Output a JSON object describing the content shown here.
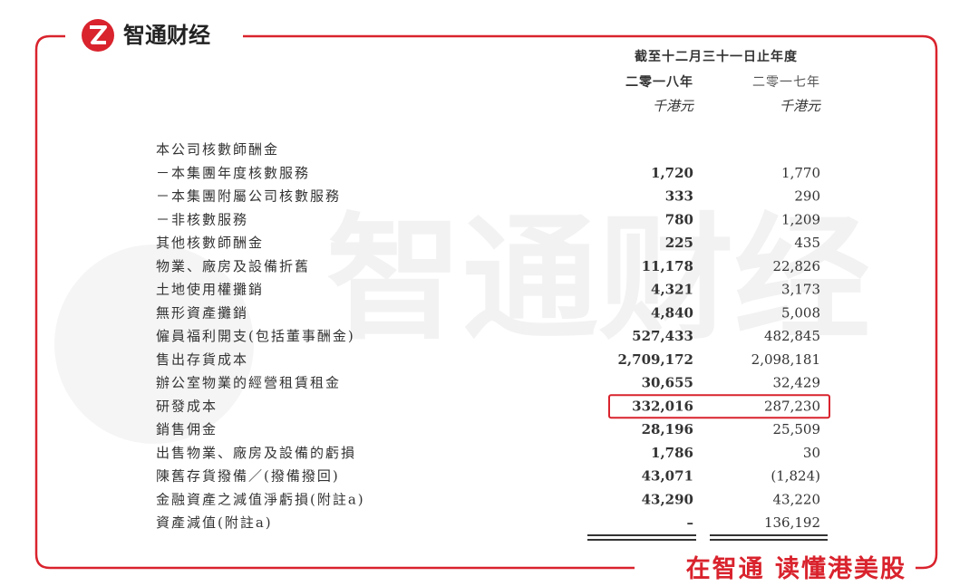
{
  "brand": {
    "name": "智通财经",
    "slogan": "在智通 读懂港美股"
  },
  "table": {
    "period": "截至十二月三十一日止年度",
    "columns": [
      {
        "year": "二零一八年",
        "unit": "千港元"
      },
      {
        "year": "二零一七年",
        "unit": "千港元"
      }
    ],
    "rows": [
      {
        "label": "本公司核數師酬金"
      },
      {
        "label": "－本集團年度核數服務",
        "values": [
          "1,720",
          "1,770"
        ]
      },
      {
        "label": "－本集團附屬公司核數服務",
        "values": [
          "333",
          "290"
        ]
      },
      {
        "label": "－非核數服務",
        "values": [
          "780",
          "1,209"
        ]
      },
      {
        "label": "其他核數師酬金",
        "values": [
          "225",
          "435"
        ]
      },
      {
        "label": "物業、廠房及設備折舊",
        "values": [
          "11,178",
          "22,826"
        ]
      },
      {
        "label": "土地使用權攤銷",
        "values": [
          "4,321",
          "3,173"
        ]
      },
      {
        "label": "無形資產攤銷",
        "values": [
          "4,840",
          "5,008"
        ]
      },
      {
        "label": "僱員福利開支(包括董事酬金)",
        "values": [
          "527,433",
          "482,845"
        ]
      },
      {
        "label": "售出存貨成本",
        "values": [
          "2,709,172",
          "2,098,181"
        ]
      },
      {
        "label": "辦公室物業的經營租賃租金",
        "values": [
          "30,655",
          "32,429"
        ]
      },
      {
        "label": "研發成本",
        "values": [
          "332,016",
          "287,230"
        ],
        "highlighted": true
      },
      {
        "label": "銷售佣金",
        "values": [
          "28,196",
          "25,509"
        ]
      },
      {
        "label": "出售物業、廠房及設備的虧損",
        "values": [
          "1,786",
          "30"
        ]
      },
      {
        "label": "陳舊存貨撥備／(撥備撥回)",
        "values": [
          "43,071",
          "(1,824)"
        ]
      },
      {
        "label": "金融資產之減值淨虧損(附註a)",
        "values": [
          "43,290",
          "43,220"
        ]
      },
      {
        "label": "資產減值(附註a)",
        "values": [
          "–",
          "136,192"
        ]
      }
    ]
  }
}
